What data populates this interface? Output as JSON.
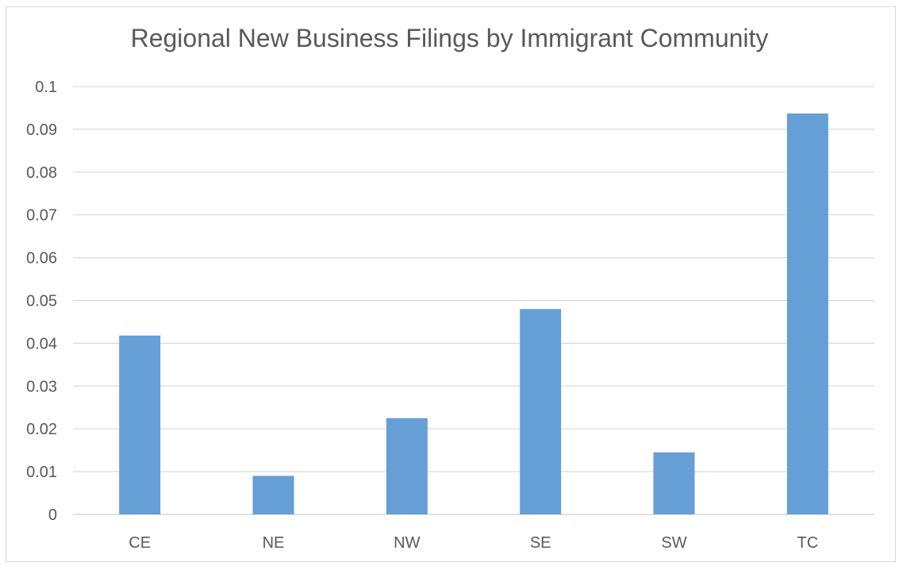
{
  "chart_data": {
    "type": "bar",
    "title": "Regional New Business Filings by Immigrant Community",
    "xlabel": "",
    "ylabel": "",
    "categories": [
      "CE",
      "NE",
      "NW",
      "SE",
      "SW",
      "TC"
    ],
    "values": [
      0.0418,
      0.009,
      0.0225,
      0.048,
      0.0145,
      0.0937
    ],
    "ylim": [
      0,
      0.1
    ],
    "yticks": [
      "0",
      "0.01",
      "0.02",
      "0.03",
      "0.04",
      "0.05",
      "0.06",
      "0.07",
      "0.08",
      "0.09",
      "0.1"
    ],
    "grid": true,
    "legend": "none",
    "bar_color": "#659fd6",
    "grid_color": "#d9d9d9"
  }
}
